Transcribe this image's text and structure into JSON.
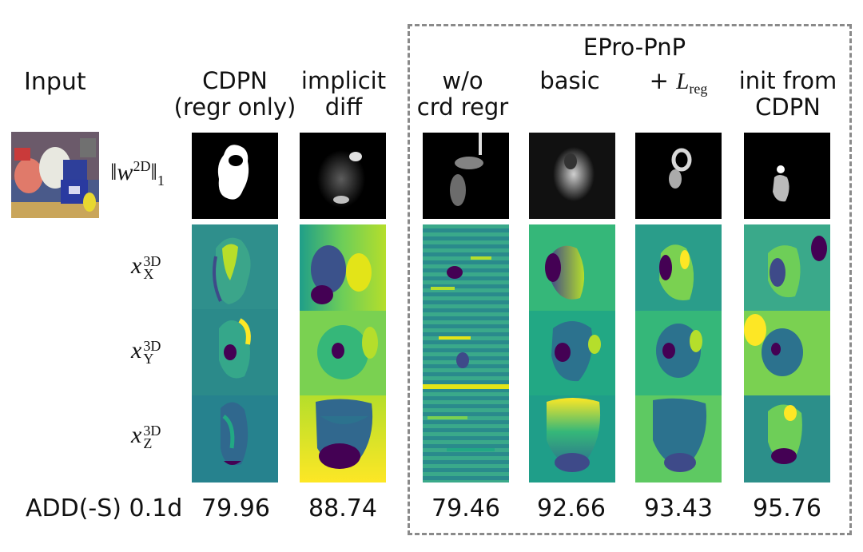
{
  "input_label": "Input",
  "epro_title": "EPro-PnP",
  "columns": [
    {
      "line1": "CDPN",
      "line2": "(regr only)"
    },
    {
      "line1": "implicit",
      "line2": "diff"
    },
    {
      "line1": "w/o",
      "line2": "crd regr"
    },
    {
      "line1": "basic",
      "line2": ""
    },
    {
      "line1": "+ ",
      "line2": ""
    },
    {
      "line1": "init from",
      "line2": "CDPN"
    }
  ],
  "reg_label": {
    "symbol": "L",
    "subscript": "reg"
  },
  "row_labels": {
    "w": {
      "norm_open": "‖w",
      "sup": "2D",
      "norm_close": "‖",
      "sub": "1"
    },
    "x": {
      "base": "x",
      "sup": "3D",
      "sub": "X"
    },
    "y": {
      "base": "x",
      "sup": "3D",
      "sub": "Y"
    },
    "z": {
      "base": "x",
      "sup": "3D",
      "sub": "Z"
    }
  },
  "metric_label": "ADD(-S) 0.1d",
  "scores": [
    "79.96",
    "88.74",
    "79.46",
    "92.66",
    "93.43",
    "95.76"
  ],
  "colors": {
    "viridis_dark": "#440154",
    "viridis_mid": "#21918c",
    "viridis_light": "#fde725",
    "dash": "#8a8a8a"
  }
}
